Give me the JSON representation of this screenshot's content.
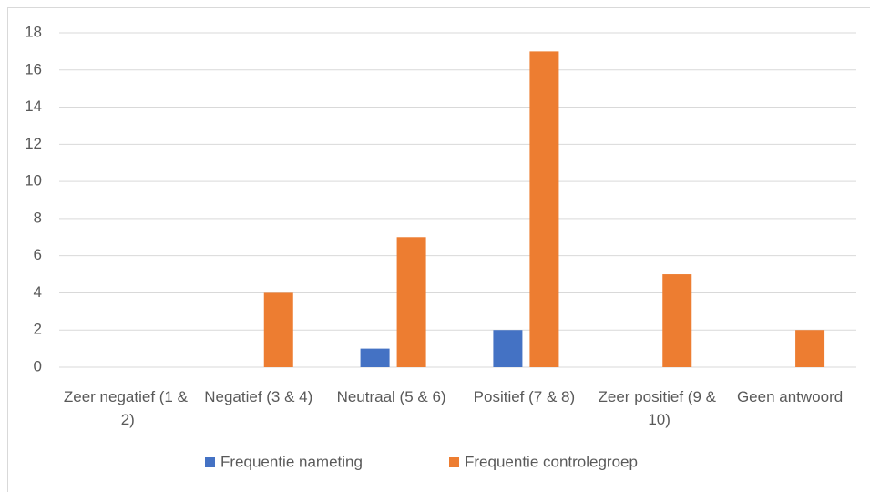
{
  "chart_data": {
    "type": "bar",
    "categories": [
      "Zeer negatief (1 & 2)",
      "Negatief (3 & 4)",
      "Neutraal (5 & 6)",
      "Positief (7 & 8)",
      "Zeer positief (9 & 10)",
      "Geen antwoord"
    ],
    "series": [
      {
        "name": "Frequentie nameting",
        "color": "#4472c4",
        "values": [
          0,
          0,
          1,
          2,
          0,
          0
        ]
      },
      {
        "name": "Frequentie controlegroep",
        "color": "#ed7d31",
        "values": [
          0,
          4,
          7,
          17,
          5,
          2
        ]
      }
    ],
    "ylim": [
      0,
      18
    ],
    "yticks": [
      0,
      2,
      4,
      6,
      8,
      10,
      12,
      14,
      16,
      18
    ],
    "grid": true,
    "legend": "bottom"
  }
}
